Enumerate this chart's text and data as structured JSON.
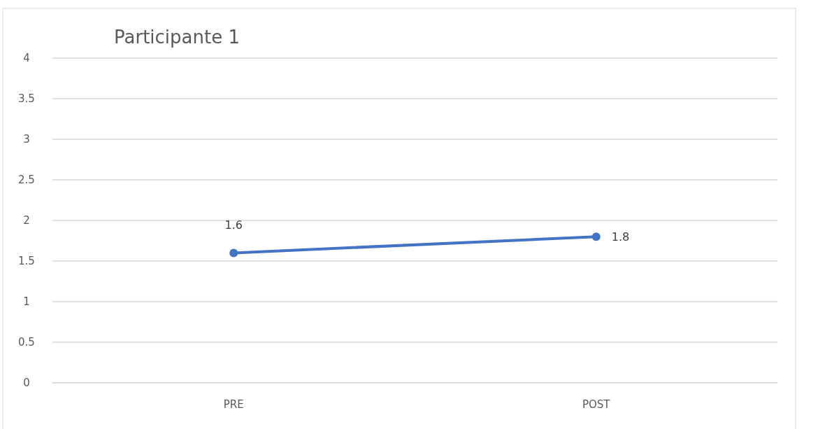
{
  "chart_data": {
    "type": "line",
    "title": "Participante 1",
    "categories": [
      "PRE",
      "POST"
    ],
    "series": [
      {
        "color": "#4472c4",
        "values": [
          1.6,
          1.8
        ]
      }
    ],
    "ylim": [
      0,
      4
    ],
    "yticks": [
      0,
      0.5,
      1,
      1.5,
      2,
      2.5,
      3,
      3.5,
      4
    ],
    "grid": "y",
    "marker": "circle",
    "data_labels": true
  }
}
